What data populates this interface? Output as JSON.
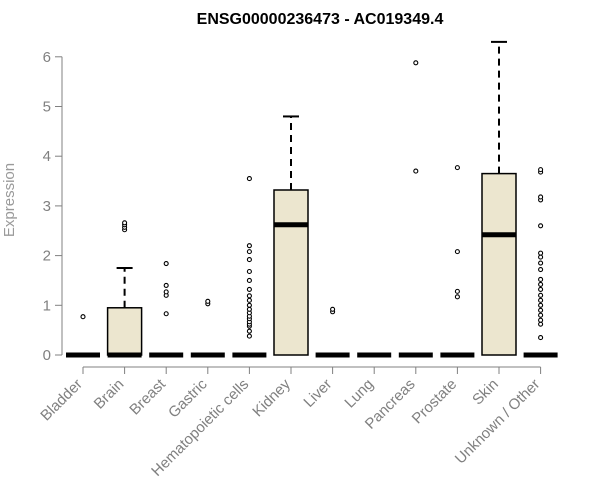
{
  "chart_data": {
    "type": "boxplot",
    "title": "ENSG00000236473 - AC019349.4",
    "xlabel": "",
    "ylabel": "Expression",
    "ylim": [
      0,
      6
    ],
    "yticks": [
      0,
      1,
      2,
      3,
      4,
      5,
      6
    ],
    "box_fill": "#ECE6CF",
    "categories": [
      "Bladder",
      "Brain",
      "Breast",
      "Gastric",
      "Hematopoietic cells",
      "Kidney",
      "Liver",
      "Lung",
      "Pancreas",
      "Prostate",
      "Skin",
      "Unknown / Other"
    ],
    "boxes": [
      {
        "q1": 0,
        "median": 0,
        "q3": 0,
        "whisker_low": 0,
        "whisker_high": 0,
        "outliers": [
          0.77
        ]
      },
      {
        "q1": 0,
        "median": 0,
        "q3": 0.95,
        "whisker_low": 0,
        "whisker_high": 1.75,
        "outliers": [
          2.52,
          2.57,
          2.62,
          2.66
        ]
      },
      {
        "q1": 0,
        "median": 0,
        "q3": 0,
        "whisker_low": 0,
        "whisker_high": 0,
        "outliers": [
          0.83,
          1.2,
          1.27,
          1.4,
          1.84
        ]
      },
      {
        "q1": 0,
        "median": 0,
        "q3": 0,
        "whisker_low": 0,
        "whisker_high": 0,
        "outliers": [
          1.03,
          1.08
        ]
      },
      {
        "q1": 0,
        "median": 0,
        "q3": 0,
        "whisker_low": 0,
        "whisker_high": 0,
        "outliers": [
          0.38,
          0.48,
          0.58,
          0.62,
          0.67,
          0.73,
          0.78,
          0.85,
          0.92,
          1.0,
          1.1,
          1.19,
          1.32,
          1.5,
          1.68,
          1.92,
          2.08,
          2.2,
          3.55
        ]
      },
      {
        "q1": 0,
        "median": 2.62,
        "q3": 3.32,
        "whisker_low": 0,
        "whisker_high": 4.8,
        "outliers": []
      },
      {
        "q1": 0,
        "median": 0,
        "q3": 0,
        "whisker_low": 0,
        "whisker_high": 0,
        "outliers": [
          0.87,
          0.92
        ]
      },
      {
        "q1": 0,
        "median": 0,
        "q3": 0,
        "whisker_low": 0,
        "whisker_high": 0,
        "outliers": []
      },
      {
        "q1": 0,
        "median": 0,
        "q3": 0,
        "whisker_low": 0,
        "whisker_high": 0,
        "outliers": [
          3.7,
          5.88
        ]
      },
      {
        "q1": 0,
        "median": 0,
        "q3": 0,
        "whisker_low": 0,
        "whisker_high": 0,
        "outliers": [
          1.17,
          1.28,
          2.08,
          3.77
        ]
      },
      {
        "q1": 0,
        "median": 2.42,
        "q3": 3.65,
        "whisker_low": 0,
        "whisker_high": 6.3,
        "outliers": []
      },
      {
        "q1": 0,
        "median": 0,
        "q3": 0,
        "whisker_low": 0,
        "whisker_high": 0,
        "outliers": [
          0.35,
          0.62,
          0.7,
          0.8,
          0.9,
          1.0,
          1.1,
          1.2,
          1.32,
          1.42,
          1.52,
          1.72,
          1.85,
          1.97,
          2.05,
          2.6,
          3.12,
          3.18,
          3.68,
          3.73
        ]
      }
    ]
  }
}
